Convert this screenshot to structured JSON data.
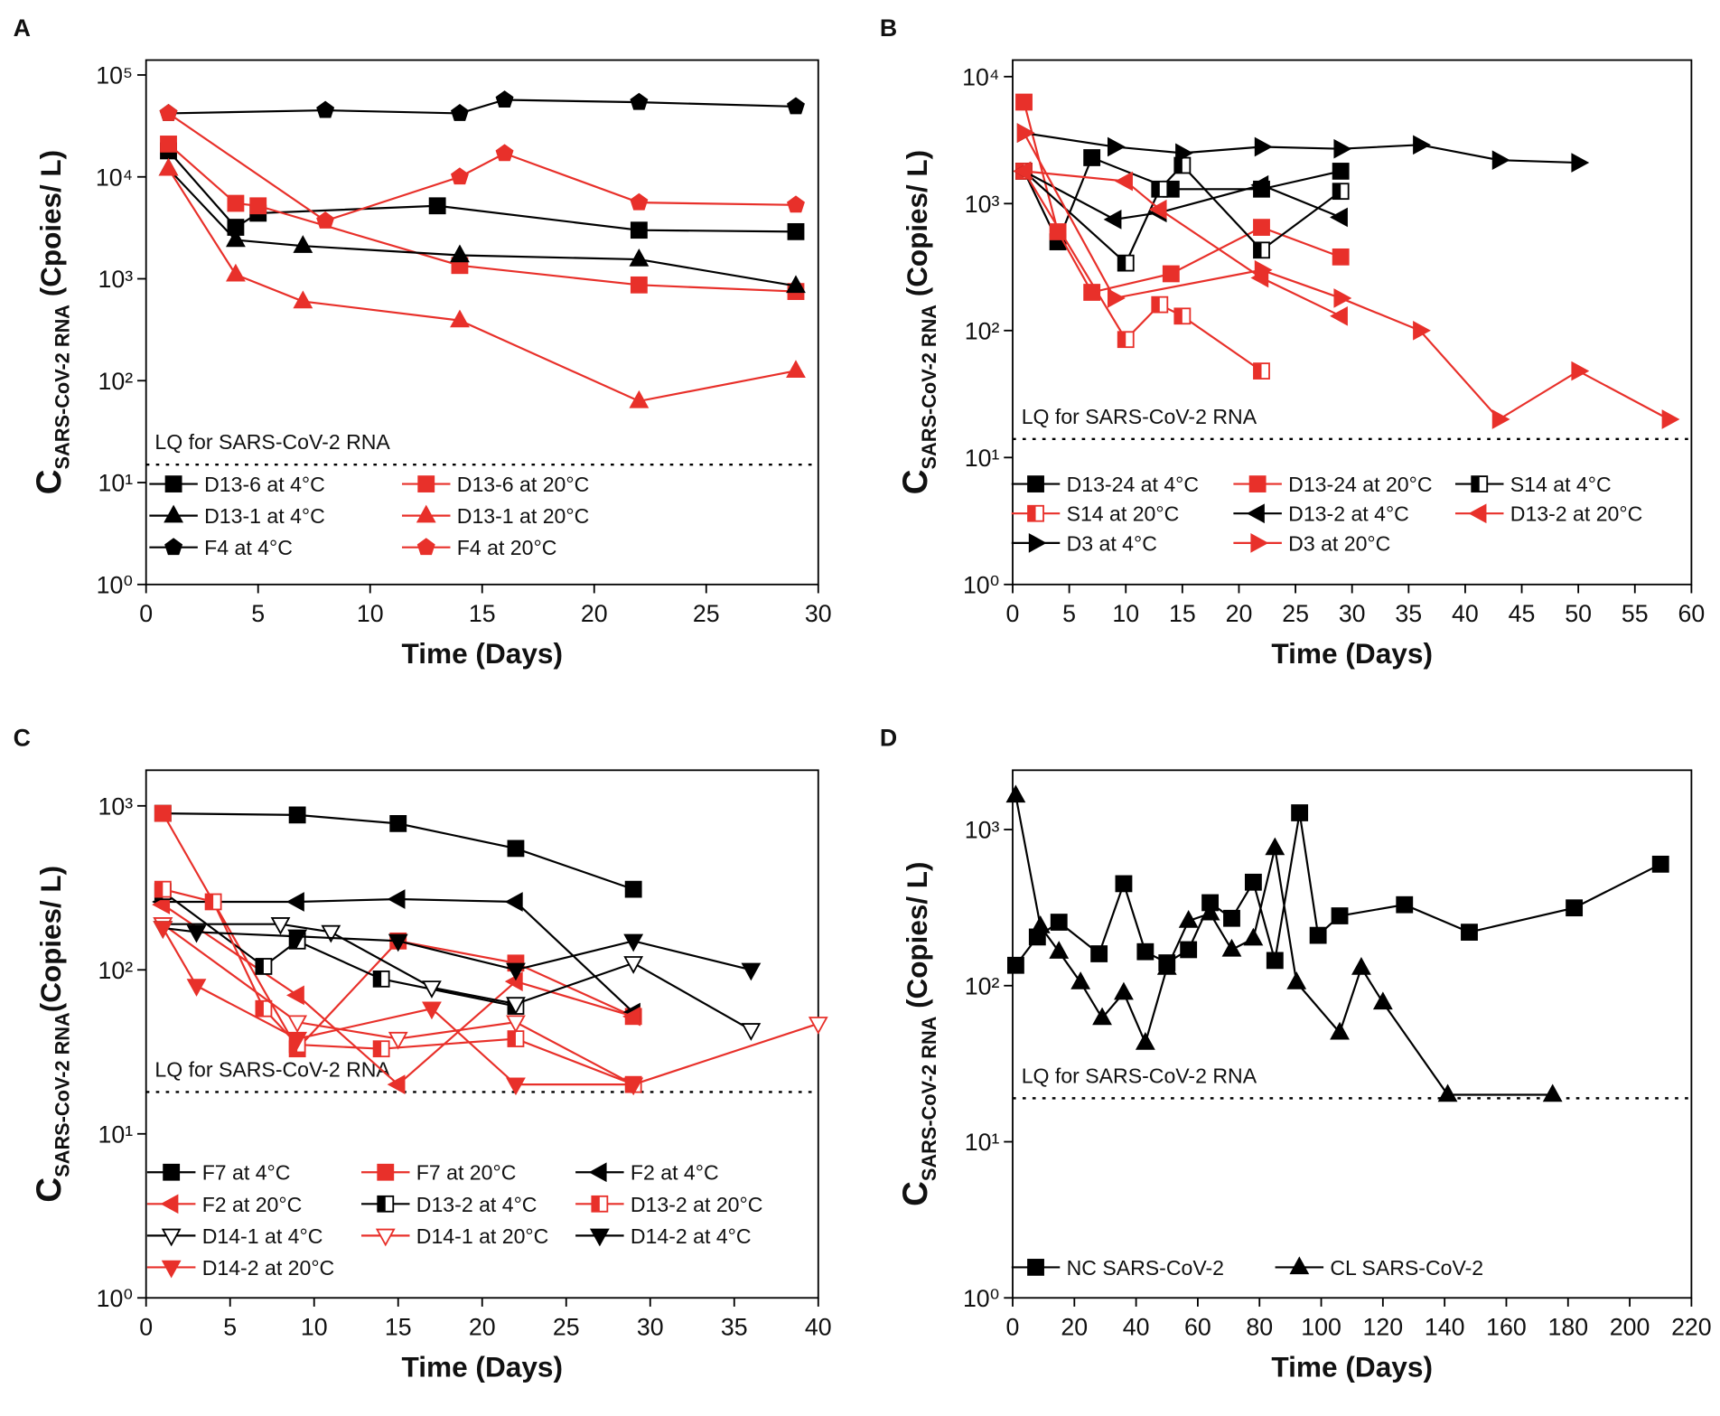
{
  "chart_data": [
    {
      "type": "line",
      "panel": "A",
      "xlabel": "Time (Days)",
      "ylabel": "C",
      "ylabel_sub": "SARS-CoV-2 RNA",
      "ylabel_unit": " (Cpoies/ L)",
      "log_y": true,
      "xlim": [
        0,
        30
      ],
      "xticks": [
        0,
        5,
        10,
        15,
        20,
        25,
        30
      ],
      "ylim": [
        1,
        140000
      ],
      "yticks": [
        {
          "value": 1,
          "label": "10⁰"
        },
        {
          "value": 10,
          "label": "10¹"
        },
        {
          "value": 100,
          "label": "10²"
        },
        {
          "value": 1000,
          "label": "10³"
        },
        {
          "value": 10000,
          "label": "10⁴"
        },
        {
          "value": 100000,
          "label": "10⁵"
        }
      ],
      "lq": {
        "value": 15,
        "label": "LQ for SARS-CoV-2 RNA"
      },
      "series": [
        {
          "name": "D13-6 at 4°C",
          "color": "#000000",
          "marker": "square",
          "fill": "filled",
          "x": [
            1,
            4,
            5,
            13,
            22,
            29
          ],
          "values": [
            18000,
            3200,
            4400,
            5200,
            3000,
            2900
          ]
        },
        {
          "name": "D13-6 at 20°C",
          "color": "#e8302a",
          "marker": "square",
          "fill": "filled",
          "x": [
            1,
            4,
            5,
            14,
            22,
            29
          ],
          "values": [
            21000,
            5500,
            5200,
            1350,
            870,
            750
          ]
        },
        {
          "name": "D13-1 at 4°C",
          "color": "#000000",
          "marker": "triangle",
          "fill": "filled",
          "x": [
            1,
            4,
            7,
            14,
            22,
            29
          ],
          "values": [
            12000,
            2400,
            2100,
            1700,
            1550,
            850
          ]
        },
        {
          "name": "D13-1 at 20°C",
          "color": "#e8302a",
          "marker": "triangle",
          "fill": "filled",
          "x": [
            1,
            4,
            7,
            14,
            22,
            29
          ],
          "values": [
            12000,
            1100,
            600,
            390,
            63,
            125
          ]
        },
        {
          "name": "F4 at 4°C",
          "color": "#000000",
          "marker": "pentagon",
          "fill": "filled",
          "x": [
            1,
            8,
            14,
            16,
            22,
            29
          ],
          "values": [
            42000,
            45000,
            42000,
            57000,
            54000,
            49000
          ]
        },
        {
          "name": "F4 at 20°C",
          "color": "#e8302a",
          "marker": "pentagon",
          "fill": "filled",
          "x": [
            1,
            8,
            14,
            16,
            22,
            29
          ],
          "values": [
            42000,
            3700,
            10000,
            17000,
            5600,
            5300
          ]
        }
      ]
    },
    {
      "type": "line",
      "panel": "B",
      "xlabel": "Time (Days)",
      "ylabel": "C",
      "ylabel_sub": "SARS-CoV-2 RNA",
      "ylabel_unit": " (Copies/ L)",
      "log_y": true,
      "xlim": [
        0,
        60
      ],
      "xticks": [
        0,
        5,
        10,
        15,
        20,
        25,
        30,
        35,
        40,
        45,
        50,
        55,
        60
      ],
      "ylim": [
        1,
        13500
      ],
      "yticks": [
        {
          "value": 1,
          "label": "10⁰"
        },
        {
          "value": 10,
          "label": "10¹"
        },
        {
          "value": 100,
          "label": "10²"
        },
        {
          "value": 1000,
          "label": "10³"
        },
        {
          "value": 10000,
          "label": "10⁴"
        }
      ],
      "lq": {
        "value": 14,
        "label": "LQ for SARS-CoV-2 RNA"
      },
      "series": [
        {
          "name": "D13-24 at 4°C",
          "color": "#000000",
          "marker": "square",
          "fill": "filled",
          "x": [
            1,
            4,
            7,
            14,
            22,
            29
          ],
          "values": [
            1800,
            500,
            2300,
            1300,
            1300,
            1800
          ]
        },
        {
          "name": "D13-24 at 20°C",
          "color": "#e8302a",
          "marker": "square",
          "fill": "filled",
          "x": [
            1,
            4,
            7,
            14,
            22,
            29
          ],
          "values": [
            6300,
            600,
            200,
            280,
            650,
            380
          ]
        },
        {
          "name": "S14 at 4°C",
          "color": "#000000",
          "marker": "square",
          "fill": "half",
          "x": [
            1,
            10,
            13,
            15,
            22,
            29
          ],
          "values": [
            1800,
            340,
            1300,
            2000,
            430,
            1250
          ]
        },
        {
          "name": "S14 at 20°C",
          "color": "#e8302a",
          "marker": "square",
          "fill": "half",
          "x": [
            1,
            10,
            13,
            15,
            22
          ],
          "values": [
            1800,
            85,
            160,
            130,
            48
          ]
        },
        {
          "name": "D13-2 at 4°C",
          "color": "#000000",
          "marker": "left",
          "fill": "filled",
          "x": [
            1,
            9,
            13,
            22,
            29
          ],
          "values": [
            1800,
            750,
            850,
            1400,
            780
          ]
        },
        {
          "name": "D13-2 at 20°C",
          "color": "#e8302a",
          "marker": "left",
          "fill": "filled",
          "x": [
            1,
            10,
            13,
            22,
            29
          ],
          "values": [
            1800,
            1500,
            900,
            260,
            130
          ]
        },
        {
          "name": "D3 at 4°C",
          "color": "#000000",
          "marker": "right",
          "fill": "filled",
          "x": [
            1,
            9,
            15,
            22,
            29,
            36,
            43,
            50
          ],
          "values": [
            3600,
            2800,
            2500,
            2800,
            2700,
            2900,
            2200,
            2100
          ]
        },
        {
          "name": "D3  at 20°C",
          "color": "#e8302a",
          "marker": "right",
          "fill": "filled",
          "x": [
            1,
            9,
            22,
            29,
            36,
            43,
            50,
            58
          ],
          "values": [
            3600,
            180,
            300,
            180,
            100,
            20,
            48,
            20
          ]
        }
      ]
    },
    {
      "type": "line",
      "panel": "C",
      "xlabel": "Time (Days)",
      "ylabel": "C",
      "ylabel_sub": "SARS-CoV-2 RNA",
      "ylabel_unit": "(Copies/ L)",
      "log_y": true,
      "xlim": [
        0,
        40
      ],
      "xticks": [
        0,
        5,
        10,
        15,
        20,
        25,
        30,
        35,
        40
      ],
      "ylim": [
        1,
        1650
      ],
      "yticks": [
        {
          "value": 1,
          "label": "10⁰"
        },
        {
          "value": 10,
          "label": "10¹"
        },
        {
          "value": 100,
          "label": "10²"
        },
        {
          "value": 1000,
          "label": "10³"
        }
      ],
      "lq": {
        "value": 18,
        "label": "LQ for SARS-CoV-2 RNA"
      },
      "series": [
        {
          "name": "F7 at 4°C",
          "color": "#000000",
          "marker": "square",
          "fill": "filled",
          "x": [
            1,
            9,
            15,
            22,
            29
          ],
          "values": [
            900,
            880,
            780,
            550,
            310
          ]
        },
        {
          "name": "F7 at 20°C",
          "color": "#e8302a",
          "marker": "square",
          "fill": "filled",
          "x": [
            1,
            9,
            15,
            22,
            29
          ],
          "values": [
            900,
            33,
            150,
            110,
            52
          ]
        },
        {
          "name": "F2 at 4°C",
          "color": "#000000",
          "marker": "left",
          "fill": "filled",
          "x": [
            1,
            9,
            15,
            22,
            29
          ],
          "values": [
            260,
            260,
            270,
            260,
            55
          ]
        },
        {
          "name": "F2 at 20°C",
          "color": "#e8302a",
          "marker": "left",
          "fill": "filled",
          "x": [
            1,
            9,
            15,
            22,
            29
          ],
          "values": [
            250,
            70,
            20,
            85,
            52
          ]
        },
        {
          "name": "D13-2 at 4°C",
          "color": "#000000",
          "marker": "square",
          "fill": "half",
          "x": [
            1,
            7,
            9,
            14,
            22
          ],
          "values": [
            300,
            105,
            150,
            88,
            60
          ]
        },
        {
          "name": "D13-2 at 20°C",
          "color": "#e8302a",
          "marker": "square",
          "fill": "half",
          "x": [
            1,
            4,
            7,
            9,
            14,
            22,
            29
          ],
          "values": [
            310,
            260,
            58,
            35,
            33,
            38,
            20
          ]
        },
        {
          "name": "D14-1 at 4°C",
          "color": "#000000",
          "marker": "down",
          "fill": "open",
          "x": [
            1,
            8,
            11,
            17,
            22,
            29,
            36
          ],
          "values": [
            190,
            190,
            170,
            78,
            62,
            110,
            43
          ]
        },
        {
          "name": "D14-1 at 20°C",
          "color": "#e8302a",
          "marker": "down",
          "fill": "open",
          "x": [
            1,
            9,
            15,
            22,
            29,
            40
          ],
          "values": [
            190,
            48,
            38,
            48,
            20,
            47
          ]
        },
        {
          "name": "D14-2 at 4°C",
          "color": "#000000",
          "marker": "down",
          "fill": "filled",
          "x": [
            1,
            3,
            9,
            15,
            22,
            29,
            36
          ],
          "values": [
            180,
            170,
            160,
            150,
            100,
            150,
            100
          ]
        },
        {
          "name": "D14-2 at 20°C",
          "color": "#e8302a",
          "marker": "down",
          "fill": "filled",
          "x": [
            1,
            3,
            9,
            17,
            22,
            29
          ],
          "values": [
            180,
            80,
            38,
            58,
            20,
            20
          ]
        }
      ]
    },
    {
      "type": "line",
      "panel": "D",
      "xlabel": "Time (Days)",
      "ylabel": "C",
      "ylabel_sub": "SARS-CoV-2 RNA",
      "ylabel_unit": " (Copies/ L)",
      "log_y": true,
      "xlim": [
        0,
        220
      ],
      "xticks": [
        0,
        20,
        40,
        60,
        80,
        100,
        120,
        140,
        160,
        180,
        200,
        220
      ],
      "ylim": [
        1,
        2400
      ],
      "yticks": [
        {
          "value": 1,
          "label": "10⁰"
        },
        {
          "value": 10,
          "label": "10¹"
        },
        {
          "value": 100,
          "label": "10²"
        },
        {
          "value": 1000,
          "label": "10³"
        }
      ],
      "lq": {
        "value": 19,
        "label": "LQ for SARS-CoV-2 RNA"
      },
      "series": [
        {
          "name": "NC SARS-CoV-2",
          "color": "#000000",
          "marker": "square",
          "fill": "filled",
          "x": [
            1,
            8,
            15,
            28,
            36,
            43,
            50,
            57,
            64,
            71,
            78,
            85,
            93,
            99,
            106,
            127,
            148,
            182,
            210
          ],
          "values": [
            135,
            205,
            255,
            160,
            450,
            165,
            140,
            170,
            340,
            270,
            460,
            145,
            1280,
            210,
            280,
            330,
            220,
            315,
            600
          ]
        },
        {
          "name": "CL SARS-CoV-2",
          "color": "#000000",
          "marker": "triangle",
          "fill": "filled",
          "x": [
            1,
            9,
            15,
            22,
            29,
            36,
            43,
            50,
            57,
            64,
            71,
            78,
            85,
            92,
            106,
            113,
            120,
            141,
            175
          ],
          "values": [
            1650,
            240,
            165,
            105,
            62,
            90,
            43,
            130,
            260,
            290,
            170,
            200,
            760,
            105,
            50,
            130,
            78,
            20,
            20
          ]
        }
      ]
    }
  ]
}
